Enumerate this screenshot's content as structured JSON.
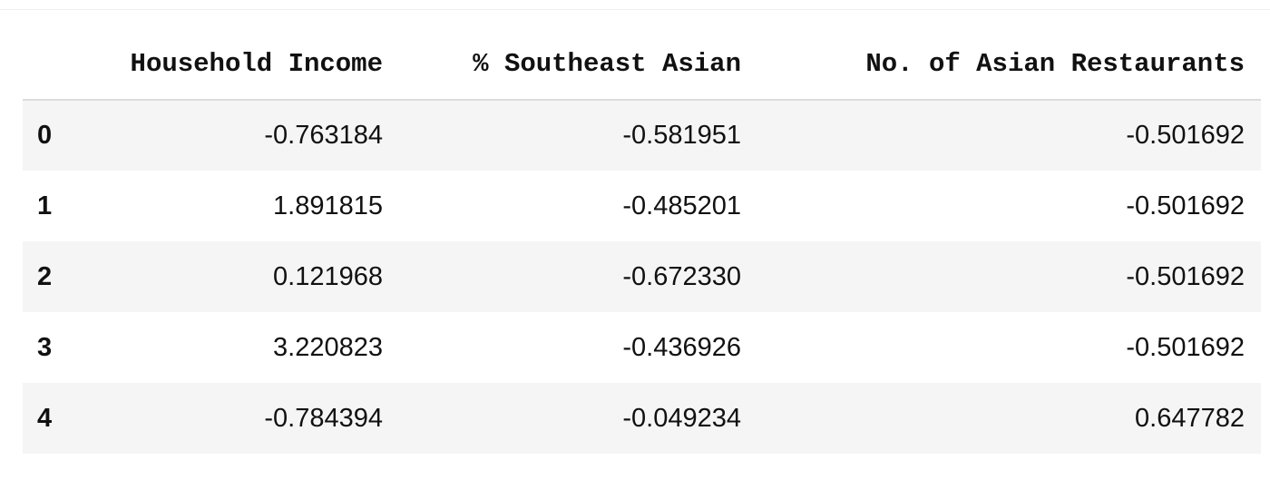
{
  "table": {
    "columns": [
      "",
      "Household Income",
      "% Southeast Asian",
      "No. of Asian Restaurants"
    ],
    "rows": [
      {
        "index": "0",
        "household_income": "-0.763184",
        "southeast_asian": "-0.581951",
        "asian_restaurants": "-0.501692"
      },
      {
        "index": "1",
        "household_income": "1.891815",
        "southeast_asian": "-0.485201",
        "asian_restaurants": "-0.501692"
      },
      {
        "index": "2",
        "household_income": "0.121968",
        "southeast_asian": "-0.672330",
        "asian_restaurants": "-0.501692"
      },
      {
        "index": "3",
        "household_income": "3.220823",
        "southeast_asian": "-0.436926",
        "asian_restaurants": "-0.501692"
      },
      {
        "index": "4",
        "household_income": "-0.784394",
        "southeast_asian": "-0.049234",
        "asian_restaurants": "0.647782"
      }
    ]
  },
  "colors": {
    "text": "#111111",
    "stripe": "#f5f5f5",
    "header_rule": "#dcdcdc"
  }
}
